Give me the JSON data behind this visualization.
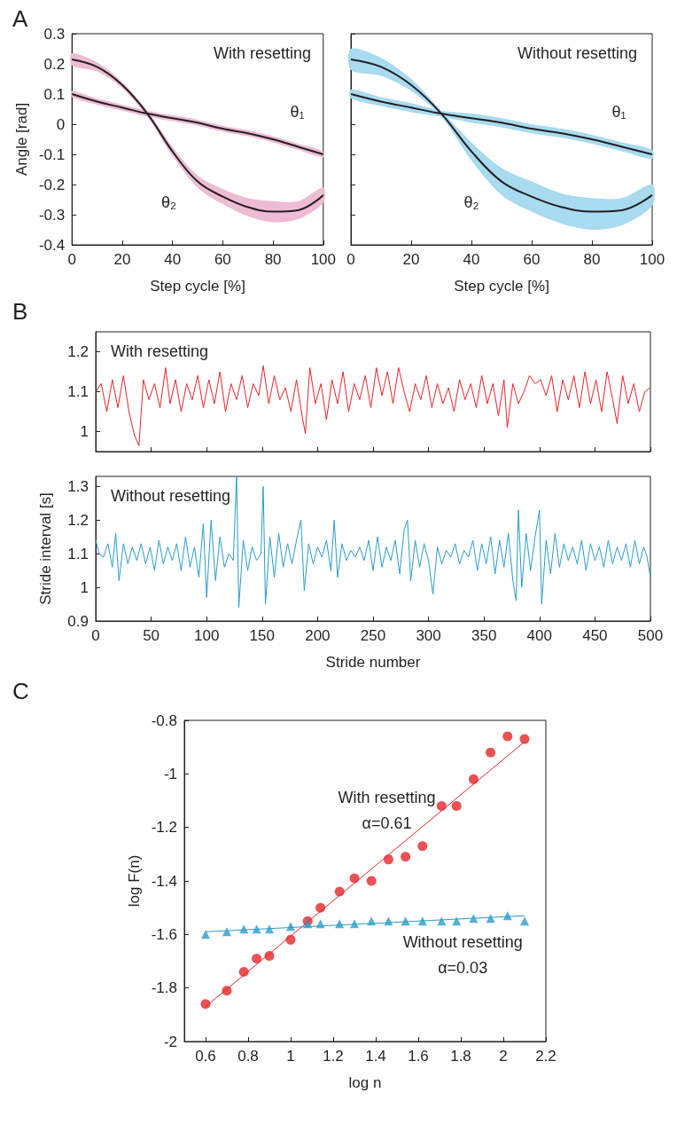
{
  "chart_data": [
    {
      "type": "line",
      "title": "With resetting",
      "ylabel": "Angle [rad]",
      "xlabel": "Step cycle [%]",
      "annotations": [
        "A",
        "θ₁",
        "θ₂"
      ],
      "x": [
        0,
        10,
        20,
        30,
        40,
        50,
        60,
        70,
        80,
        90,
        100
      ],
      "xlim": [
        0,
        100
      ],
      "xticks": [
        0,
        20,
        40,
        60,
        80,
        100
      ],
      "ylim": [
        -0.4,
        0.3
      ],
      "yticks": [
        -0.4,
        -0.3,
        -0.2,
        -0.1,
        0,
        0.1,
        0.2,
        0.3
      ],
      "marker": "none",
      "colors": [
        "#eebbd5",
        "#eebbd5"
      ],
      "series": [
        {
          "color": "#231f20",
          "values": [
            0.1,
            0.075,
            0.055,
            0.035,
            0.02,
            0.005,
            -0.015,
            -0.03,
            -0.05,
            -0.075,
            -0.1
          ],
          "lower": [
            0.09,
            0.065,
            0.045,
            0.025,
            0.01,
            -0.005,
            -0.025,
            -0.04,
            -0.06,
            -0.085,
            -0.11
          ],
          "upper": [
            0.11,
            0.085,
            0.065,
            0.045,
            0.03,
            0.015,
            -0.005,
            -0.02,
            -0.04,
            -0.065,
            -0.09
          ]
        },
        {
          "color": "#231f20",
          "values": [
            0.215,
            0.19,
            0.13,
            0.035,
            -0.09,
            -0.19,
            -0.24,
            -0.275,
            -0.29,
            -0.285,
            -0.235
          ],
          "lower": [
            0.195,
            0.175,
            0.12,
            0.025,
            -0.105,
            -0.21,
            -0.265,
            -0.305,
            -0.325,
            -0.315,
            -0.26
          ],
          "upper": [
            0.235,
            0.205,
            0.14,
            0.045,
            -0.075,
            -0.17,
            -0.215,
            -0.245,
            -0.255,
            -0.255,
            -0.21
          ]
        }
      ]
    },
    {
      "type": "line",
      "title": "Without resetting",
      "xlabel": "Step cycle [%]",
      "annotations": [
        "θ₁",
        "θ₂"
      ],
      "x": [
        0,
        10,
        20,
        30,
        40,
        50,
        60,
        70,
        80,
        90,
        100
      ],
      "xlim": [
        0,
        100
      ],
      "xticks": [
        0,
        20,
        40,
        60,
        80,
        100
      ],
      "ylim": [
        -0.4,
        0.3
      ],
      "yticks": [
        -0.4,
        -0.3,
        -0.2,
        -0.1,
        0,
        0.1,
        0.2,
        0.3
      ],
      "tick_labels": "x",
      "marker": "none",
      "colors": [
        "#a8daf0",
        "#a8daf0"
      ],
      "series": [
        {
          "color": "#231f20",
          "values": [
            0.1,
            0.075,
            0.055,
            0.035,
            0.02,
            0.005,
            -0.015,
            -0.03,
            -0.05,
            -0.075,
            -0.1
          ],
          "lower": [
            0.085,
            0.06,
            0.04,
            0.025,
            0.005,
            -0.01,
            -0.03,
            -0.045,
            -0.065,
            -0.09,
            -0.115
          ],
          "upper": [
            0.115,
            0.09,
            0.07,
            0.045,
            0.035,
            0.02,
            0,
            -0.015,
            -0.035,
            -0.06,
            -0.085
          ]
        },
        {
          "color": "#231f20",
          "values": [
            0.215,
            0.19,
            0.13,
            0.035,
            -0.09,
            -0.19,
            -0.24,
            -0.275,
            -0.29,
            -0.285,
            -0.235
          ],
          "lower": [
            0.18,
            0.16,
            0.11,
            0.025,
            -0.12,
            -0.235,
            -0.29,
            -0.33,
            -0.35,
            -0.335,
            -0.27
          ],
          "upper": [
            0.25,
            0.22,
            0.15,
            0.045,
            -0.06,
            -0.145,
            -0.19,
            -0.23,
            -0.245,
            -0.245,
            -0.2
          ]
        }
      ]
    },
    {
      "type": "line",
      "title": "With resetting",
      "annotations": [
        "B"
      ],
      "xlim": [
        0,
        500
      ],
      "xticks": [
        0,
        50,
        100,
        150,
        200,
        250,
        300,
        350,
        400,
        450,
        500
      ],
      "ylim": [
        0.95,
        1.25
      ],
      "yticks": [
        1,
        1.1,
        1.2
      ],
      "tick_labels": "y",
      "marker": "none",
      "series": [
        {
          "color": "#e8242a",
          "x": [
            0,
            5,
            10,
            15,
            20,
            25,
            30,
            35,
            39,
            43,
            48,
            53,
            58,
            63,
            67,
            72,
            77,
            82,
            87,
            92,
            97,
            102,
            107,
            112,
            117,
            122,
            127,
            132,
            137,
            142,
            147,
            151,
            156,
            161,
            166,
            171,
            176,
            181,
            186,
            189,
            193,
            198,
            203,
            208,
            213,
            218,
            223,
            228,
            233,
            238,
            243,
            248,
            253,
            258,
            263,
            268,
            273,
            278,
            283,
            288,
            293,
            298,
            303,
            308,
            313,
            318,
            323,
            328,
            333,
            338,
            343,
            348,
            353,
            358,
            363,
            368,
            371,
            376,
            381,
            386,
            391,
            396,
            401,
            406,
            411,
            416,
            421,
            426,
            431,
            436,
            441,
            446,
            451,
            456,
            461,
            466,
            470,
            475,
            480,
            485,
            490,
            495,
            500
          ],
          "values": [
            1.1,
            1.12,
            1.05,
            1.13,
            1.06,
            1.14,
            1.05,
            0.99,
            0.965,
            1.13,
            1.08,
            1.12,
            1.06,
            1.16,
            1.07,
            1.13,
            1.05,
            1.12,
            1.08,
            1.14,
            1.06,
            1.13,
            1.07,
            1.15,
            1.05,
            1.12,
            1.08,
            1.14,
            1.06,
            1.12,
            1.09,
            1.165,
            1.07,
            1.14,
            1.08,
            1.11,
            1.05,
            1.13,
            1.04,
            0.995,
            1.16,
            1.07,
            1.12,
            1.03,
            1.13,
            1.07,
            1.15,
            1.05,
            1.12,
            1.08,
            1.14,
            1.06,
            1.16,
            1.09,
            1.15,
            1.07,
            1.16,
            1.1,
            1.05,
            1.12,
            1.08,
            1.14,
            1.06,
            1.12,
            1.07,
            1.11,
            1.05,
            1.13,
            1.08,
            1.12,
            1.06,
            1.14,
            1.07,
            1.12,
            1.04,
            1.13,
            1.01,
            1.12,
            1.07,
            1.1,
            1.14,
            1.12,
            1.13,
            1.09,
            1.14,
            1.05,
            1.13,
            1.08,
            1.14,
            1.06,
            1.15,
            1.07,
            1.13,
            1.05,
            1.15,
            1.08,
            1.02,
            1.14,
            1.07,
            1.12,
            1.05,
            1.1,
            1.11
          ]
        }
      ]
    },
    {
      "type": "line",
      "title": "Without resetting",
      "ylabel": "Stride interval [s]",
      "xlabel": "Stride number",
      "xlim": [
        0,
        500
      ],
      "xticks": [
        0,
        50,
        100,
        150,
        200,
        250,
        300,
        350,
        400,
        450,
        500
      ],
      "ylim": [
        0.9,
        1.33
      ],
      "yticks": [
        0.9,
        1,
        1.1,
        1.2,
        1.3
      ],
      "marker": "none",
      "series": [
        {
          "color": "#2a9ccc",
          "x": [
            0,
            3,
            7,
            11,
            15,
            18,
            21,
            25,
            29,
            33,
            37,
            41,
            45,
            49,
            53,
            57,
            61,
            65,
            69,
            73,
            77,
            81,
            85,
            89,
            93,
            97,
            100,
            104,
            108,
            112,
            116,
            120,
            124,
            127,
            129,
            133,
            137,
            141,
            145,
            149,
            151,
            153,
            157,
            161,
            165,
            169,
            173,
            177,
            181,
            185,
            188,
            192,
            196,
            200,
            204,
            208,
            212,
            215,
            218,
            222,
            226,
            230,
            234,
            238,
            242,
            246,
            250,
            254,
            258,
            262,
            266,
            270,
            274,
            278,
            281,
            284,
            288,
            292,
            296,
            300,
            304,
            308,
            312,
            316,
            320,
            324,
            328,
            332,
            336,
            340,
            344,
            348,
            352,
            356,
            360,
            364,
            368,
            372,
            376,
            379,
            381,
            384,
            388,
            392,
            396,
            400,
            402,
            406,
            410,
            414,
            418,
            422,
            426,
            430,
            434,
            438,
            442,
            446,
            450,
            454,
            458,
            462,
            466,
            470,
            474,
            478,
            482,
            486,
            490,
            494,
            497,
            500
          ],
          "values": [
            1.14,
            1.1,
            1.09,
            1.13,
            1.06,
            1.16,
            1.02,
            1.13,
            1.07,
            1.12,
            1.08,
            1.13,
            1.07,
            1.12,
            1.05,
            1.14,
            1.07,
            1.12,
            1.08,
            1.13,
            1.05,
            1.15,
            1.06,
            1.12,
            1.03,
            1.19,
            0.97,
            1.2,
            1.02,
            1.15,
            1.06,
            1.1,
            1.08,
            1.33,
            0.94,
            1.14,
            1.05,
            1.12,
            1.08,
            1.1,
            1.3,
            0.95,
            1.15,
            1.03,
            1.16,
            1.06,
            1.13,
            1.07,
            1.14,
            1.2,
            0.99,
            1.13,
            1.07,
            1.12,
            1.09,
            1.14,
            1.05,
            1.2,
            1.03,
            1.13,
            1.08,
            1.11,
            1.09,
            1.12,
            1.08,
            1.14,
            1.05,
            1.15,
            1.06,
            1.12,
            1.08,
            1.14,
            1.04,
            1.17,
            1.2,
            1.02,
            1.14,
            1.06,
            1.13,
            1.08,
            0.98,
            1.12,
            1.07,
            1.11,
            1.09,
            1.13,
            1.07,
            1.11,
            1.09,
            1.14,
            1.05,
            1.13,
            1.07,
            1.15,
            1.04,
            1.14,
            1.06,
            1.16,
            1.02,
            0.96,
            1.23,
            1.0,
            1.16,
            1.05,
            1.15,
            1.23,
            0.95,
            1.14,
            1.04,
            1.16,
            1.06,
            1.13,
            1.08,
            1.12,
            1.07,
            1.14,
            1.05,
            1.13,
            1.08,
            1.12,
            1.06,
            1.14,
            1.07,
            1.12,
            1.08,
            1.13,
            1.06,
            1.14,
            1.07,
            1.12,
            1.09,
            1.03
          ]
        }
      ]
    },
    {
      "type": "scatter",
      "xlabel": "log n",
      "ylabel": "log F(n)",
      "annotations": [
        "C",
        "With resetting",
        "α=0.61",
        "Without resetting",
        "α=0.03"
      ],
      "xlim": [
        0.5,
        2.2
      ],
      "xticks": [
        0.6,
        0.8,
        1,
        1.2,
        1.4,
        1.6,
        1.8,
        2,
        2.2
      ],
      "ylim": [
        -2,
        -0.8
      ],
      "yticks": [
        -2,
        -1.8,
        -1.6,
        -1.4,
        -1.2,
        -1,
        -0.8
      ],
      "series": [
        {
          "color": "#e4262a",
          "marker": "circle",
          "x": [
            0.6,
            0.7,
            0.78,
            0.84,
            0.9,
            1.0,
            1.08,
            1.14,
            1.23,
            1.3,
            1.38,
            1.46,
            1.54,
            1.62,
            1.71,
            1.78,
            1.86,
            1.94,
            2.02,
            2.1
          ],
          "values": [
            -1.86,
            -1.81,
            -1.74,
            -1.69,
            -1.68,
            -1.62,
            -1.55,
            -1.5,
            -1.44,
            -1.39,
            -1.4,
            -1.32,
            -1.31,
            -1.27,
            -1.12,
            -1.12,
            -1.02,
            -0.92,
            -0.86,
            -0.87
          ]
        },
        {
          "color": "#2a9ccc",
          "marker": "triangle",
          "x": [
            0.6,
            0.7,
            0.78,
            0.84,
            0.9,
            1.0,
            1.08,
            1.14,
            1.23,
            1.3,
            1.38,
            1.46,
            1.54,
            1.62,
            1.71,
            1.78,
            1.86,
            1.94,
            2.02,
            2.1
          ],
          "values": [
            -1.6,
            -1.59,
            -1.58,
            -1.58,
            -1.58,
            -1.57,
            -1.56,
            -1.56,
            -1.56,
            -1.56,
            -1.55,
            -1.55,
            -1.55,
            -1.55,
            -1.55,
            -1.55,
            -1.54,
            -1.54,
            -1.53,
            -1.55
          ]
        },
        {
          "type": "line",
          "marker": "none",
          "color": "#e4262a",
          "x": [
            0.6,
            2.1
          ],
          "values": [
            -1.87,
            -0.88
          ]
        },
        {
          "type": "line",
          "marker": "none",
          "color": "#2a9ccc",
          "x": [
            0.6,
            2.1
          ],
          "values": [
            -1.59,
            -1.53
          ]
        }
      ]
    }
  ]
}
